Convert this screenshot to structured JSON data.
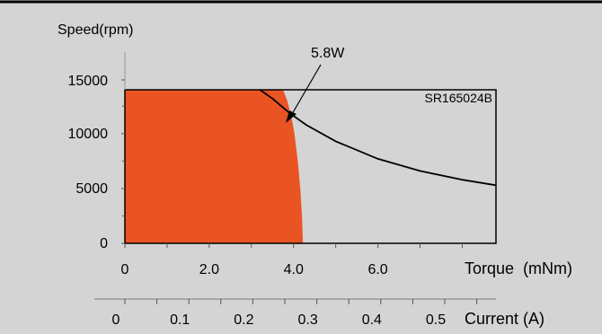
{
  "colors": {
    "background": "#d4d4d4",
    "operating_region": "#ea5423",
    "curve": "#000000",
    "frame": "#000000",
    "top_border": "#000000"
  },
  "chart_data": {
    "type": "line",
    "title": "",
    "ylabel": "Speed(rpm)",
    "xlabel": "Torque",
    "xlabel_unit": "(mNm)",
    "secondary_xlabel": "Current (A)",
    "model": "SR165024B",
    "annotation": "5.8W",
    "ylim": [
      0,
      14000
    ],
    "xlim": [
      0,
      8.8
    ],
    "yticks": [
      {
        "value": 0,
        "label": "0"
      },
      {
        "value": 5000,
        "label": "5000"
      },
      {
        "value": 10000,
        "label": "10000"
      },
      {
        "value": 15000,
        "label": "15000"
      }
    ],
    "xticks": [
      {
        "value": 0,
        "label": "0"
      },
      {
        "value": 2,
        "label": "2.0"
      },
      {
        "value": 4,
        "label": "4.0"
      },
      {
        "value": 6,
        "label": "6.0"
      }
    ],
    "current_axis": {
      "xlim": [
        0,
        0.58
      ],
      "ticks": [
        {
          "value": 0,
          "label": "0"
        },
        {
          "value": 0.1,
          "label": "0.1"
        },
        {
          "value": 0.2,
          "label": "0.2"
        },
        {
          "value": 0.3,
          "label": "0.3"
        },
        {
          "value": 0.4,
          "label": "0.4"
        },
        {
          "value": 0.5,
          "label": "0.5"
        }
      ]
    },
    "operating_region_boundary": [
      {
        "torque": 3.75,
        "speed": 14000
      },
      {
        "torque": 3.85,
        "speed": 13000
      },
      {
        "torque": 3.95,
        "speed": 11500
      },
      {
        "torque": 4.02,
        "speed": 10000
      },
      {
        "torque": 4.1,
        "speed": 7500
      },
      {
        "torque": 4.16,
        "speed": 5000
      },
      {
        "torque": 4.2,
        "speed": 2500
      },
      {
        "torque": 4.22,
        "speed": 0
      }
    ],
    "series": [
      {
        "x": [
          3.2,
          3.5,
          3.9,
          4.3,
          5.0,
          6.0,
          7.0,
          8.0,
          8.8
        ],
        "y": [
          14000,
          13200,
          11900,
          10800,
          9300,
          7700,
          6600,
          5800,
          5300
        ]
      }
    ]
  }
}
